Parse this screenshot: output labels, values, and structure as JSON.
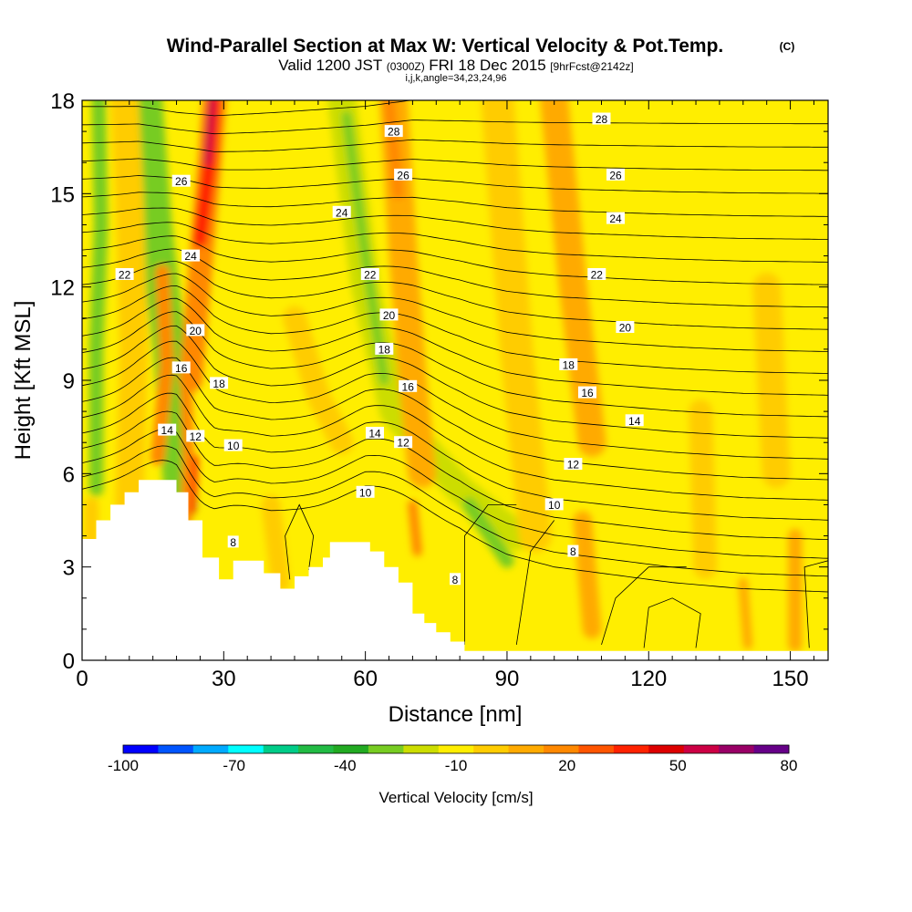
{
  "header": {
    "title": "Wind-Parallel Section at Max W: Vertical Velocity & Pot.Temp.",
    "copyright": "(C)",
    "valid_prefix": "Valid 1200 JST",
    "valid_utc": "(0300Z)",
    "valid_date": "FRI 18 Dec 2015",
    "forecast": "[9hrFcst@2142z]",
    "indices": "i,j,k,angle=34,23,24,96"
  },
  "chart_data": {
    "type": "heatmap",
    "xlabel": "Distance [nm]",
    "ylabel": "Height [Kft MSL]",
    "xlim": [
      0,
      158
    ],
    "ylim": [
      0,
      18
    ],
    "xticks": [
      0,
      30,
      60,
      90,
      120,
      150
    ],
    "yticks": [
      0,
      3,
      6,
      9,
      12,
      15,
      18
    ],
    "xtick_labels": [
      "0",
      "30",
      "60",
      "90",
      "120",
      "150"
    ],
    "ytick_labels": [
      "0",
      "3",
      "6",
      "9",
      "12",
      "15",
      "18"
    ],
    "background_color": "#ffee00",
    "field": "Vertical Velocity [cm/s]",
    "colorbar": {
      "label": "Vertical Velocity [cm/s]",
      "tick_values": [
        -100,
        -70,
        -40,
        -10,
        20,
        50,
        80
      ],
      "tick_labels": [
        "-100",
        "-70",
        "-40",
        "-10",
        "20",
        "50",
        "80"
      ],
      "levels": [
        -100,
        -90,
        -80,
        -70,
        -60,
        -50,
        -40,
        -30,
        -20,
        -10,
        0,
        10,
        20,
        30,
        40,
        50,
        60,
        70,
        80
      ],
      "colors": [
        "#0000ff",
        "#0055ff",
        "#00aaff",
        "#00ffff",
        "#00cc88",
        "#22bb44",
        "#22aa22",
        "#77cc22",
        "#ccdd00",
        "#ffee00",
        "#ffcc00",
        "#ffaa00",
        "#ff8800",
        "#ff5500",
        "#ff2200",
        "#dd0000",
        "#cc0044",
        "#990066",
        "#660088"
      ]
    },
    "velocity_features": [
      {
        "kind": "band",
        "color": "#22aa22",
        "points": [
          [
            20,
            5.6
          ],
          [
            19,
            8
          ],
          [
            17.5,
            11
          ],
          [
            15,
            14.5
          ],
          [
            13,
            18
          ]
        ],
        "width_nm": 3
      },
      {
        "kind": "band",
        "color": "#77cc22",
        "points": [
          [
            21,
            5
          ],
          [
            18.5,
            10
          ],
          [
            15.5,
            14
          ],
          [
            13.5,
            18
          ]
        ],
        "width_nm": 7
      },
      {
        "kind": "band",
        "color": "#ff8800",
        "points": [
          [
            23,
            9
          ],
          [
            25,
            12.5
          ],
          [
            27,
            16
          ],
          [
            28,
            18
          ]
        ],
        "width_nm": 5
      },
      {
        "kind": "band",
        "color": "#ff2200",
        "points": [
          [
            25,
            13.5
          ],
          [
            27,
            16
          ],
          [
            28,
            18
          ]
        ],
        "width_nm": 3
      },
      {
        "kind": "band",
        "color": "#cc0044",
        "points": [
          [
            26.5,
            16
          ],
          [
            27.5,
            18
          ]
        ],
        "width_nm": 1.5
      },
      {
        "kind": "band",
        "color": "#ff8800",
        "points": [
          [
            22,
            4.5
          ],
          [
            22.5,
            6.5
          ],
          [
            22,
            9
          ]
        ],
        "width_nm": 2.5
      },
      {
        "kind": "band",
        "color": "#ff2200",
        "points": [
          [
            23.5,
            4.8
          ],
          [
            24,
            6.5
          ]
        ],
        "width_nm": 1.2
      },
      {
        "kind": "band",
        "color": "#ff8800",
        "points": [
          [
            16,
            6.5
          ],
          [
            18,
            9.5
          ],
          [
            17,
            12.5
          ]
        ],
        "width_nm": 3
      },
      {
        "kind": "band",
        "color": "#77cc22",
        "points": [
          [
            3,
            5.5
          ],
          [
            3,
            10
          ],
          [
            4,
            14
          ],
          [
            3.5,
            18
          ]
        ],
        "width_nm": 3
      },
      {
        "kind": "band",
        "color": "#ffcc00",
        "points": [
          [
            10,
            5
          ],
          [
            11,
            10
          ],
          [
            10,
            15
          ],
          [
            9,
            18
          ]
        ],
        "width_nm": 6
      },
      {
        "kind": "band",
        "color": "#ccdd00",
        "points": [
          [
            55,
            18
          ],
          [
            60,
            12
          ],
          [
            66,
            8
          ],
          [
            80,
            5.5
          ],
          [
            92,
            4
          ]
        ],
        "width_nm": 6
      },
      {
        "kind": "band",
        "color": "#77cc22",
        "points": [
          [
            56,
            17.5
          ],
          [
            60,
            13
          ],
          [
            64,
            9
          ]
        ],
        "width_nm": 2
      },
      {
        "kind": "band",
        "color": "#77cc22",
        "points": [
          [
            82,
            5
          ],
          [
            90,
            3.2
          ]
        ],
        "width_nm": 3
      },
      {
        "kind": "band",
        "color": "#ffaa00",
        "points": [
          [
            66,
            18
          ],
          [
            68,
            13
          ],
          [
            70,
            9
          ],
          [
            72,
            6
          ]
        ],
        "width_nm": 6
      },
      {
        "kind": "band",
        "color": "#ff8800",
        "points": [
          [
            65,
            18
          ],
          [
            67,
            15
          ]
        ],
        "width_nm": 2.5
      },
      {
        "kind": "band",
        "color": "#ff8800",
        "points": [
          [
            70,
            5
          ],
          [
            71,
            3.5
          ]
        ],
        "width_nm": 2
      },
      {
        "kind": "band",
        "color": "#ffaa00",
        "points": [
          [
            100,
            18
          ],
          [
            104,
            12
          ],
          [
            108,
            7
          ]
        ],
        "width_nm": 6
      },
      {
        "kind": "band",
        "color": "#ffcc00",
        "points": [
          [
            88,
            18
          ],
          [
            92,
            10
          ],
          [
            96,
            4
          ]
        ],
        "width_nm": 7
      },
      {
        "kind": "band",
        "color": "#ffaa00",
        "points": [
          [
            106,
            4.5
          ],
          [
            108,
            1
          ]
        ],
        "width_nm": 4
      },
      {
        "kind": "band",
        "color": "#ffcc00",
        "points": [
          [
            131,
            8
          ],
          [
            132,
            3
          ]
        ],
        "width_nm": 5
      },
      {
        "kind": "band",
        "color": "#ffcc00",
        "points": [
          [
            145,
            12
          ],
          [
            147,
            6
          ]
        ],
        "width_nm": 6
      },
      {
        "kind": "band",
        "color": "#ffaa00",
        "points": [
          [
            140,
            2.5
          ],
          [
            141,
            0.5
          ]
        ],
        "width_nm": 2
      },
      {
        "kind": "band",
        "color": "#ffaa00",
        "points": [
          [
            151,
            4
          ],
          [
            151,
            0.5
          ]
        ],
        "width_nm": 3
      },
      {
        "kind": "band",
        "color": "#ffcc00",
        "points": [
          [
            2,
            5
          ],
          [
            2,
            3.5
          ]
        ],
        "width_nm": 3
      },
      {
        "kind": "band",
        "color": "#ffcc00",
        "points": [
          [
            40,
            5
          ],
          [
            42,
            2.5
          ]
        ],
        "width_nm": 4
      },
      {
        "kind": "band",
        "color": "#ffcc00",
        "points": [
          [
            45,
            11
          ],
          [
            50,
            8.5
          ],
          [
            55,
            7
          ]
        ],
        "width_nm": 5
      }
    ],
    "terrain": {
      "color": "#ffffff",
      "outline": [
        [
          0,
          3.9
        ],
        [
          3,
          3.9
        ],
        [
          3,
          4.5
        ],
        [
          6,
          4.5
        ],
        [
          6,
          5.0
        ],
        [
          9,
          5.0
        ],
        [
          9,
          5.4
        ],
        [
          12,
          5.4
        ],
        [
          12,
          5.8
        ],
        [
          20,
          5.8
        ],
        [
          20,
          5.4
        ],
        [
          22.5,
          5.4
        ],
        [
          22.5,
          4.5
        ],
        [
          25.5,
          4.5
        ],
        [
          25.5,
          3.3
        ],
        [
          29,
          3.3
        ],
        [
          29,
          2.6
        ],
        [
          32,
          2.6
        ],
        [
          32,
          3.2
        ],
        [
          38.5,
          3.2
        ],
        [
          38.5,
          2.8
        ],
        [
          42,
          2.8
        ],
        [
          42,
          2.3
        ],
        [
          45,
          2.3
        ],
        [
          45,
          2.7
        ],
        [
          48,
          2.7
        ],
        [
          48,
          3.0
        ],
        [
          51,
          3.0
        ],
        [
          51,
          3.3
        ],
        [
          52.5,
          3.3
        ],
        [
          52.5,
          3.8
        ],
        [
          61,
          3.8
        ],
        [
          61,
          3.5
        ],
        [
          64,
          3.5
        ],
        [
          64,
          3.0
        ],
        [
          67,
          3.0
        ],
        [
          67,
          2.5
        ],
        [
          70,
          2.5
        ],
        [
          70,
          1.5
        ],
        [
          72.5,
          1.5
        ],
        [
          72.5,
          1.2
        ],
        [
          75,
          1.2
        ],
        [
          75,
          0.9
        ],
        [
          78,
          0.9
        ],
        [
          78,
          0.6
        ],
        [
          81,
          0.6
        ],
        [
          81,
          0.3
        ],
        [
          158,
          0.3
        ]
      ]
    },
    "theta_isentropes": {
      "kind": "contours",
      "interval_C": 0.5,
      "base_C": 6,
      "surface_height_kft": {
        "x": [
          0,
          12,
          20,
          28,
          40,
          50,
          60,
          70,
          80,
          90,
          100,
          110,
          125,
          140,
          158
        ],
        "h": [
          5.5,
          5.9,
          6.0,
          5.2,
          4.8,
          4.8,
          4.9,
          4.5,
          4.1,
          3.4,
          3.0,
          2.8,
          2.5,
          2.3,
          2.2
        ]
      },
      "top_height_kft": {
        "x": [
          0,
          12,
          20,
          28,
          40,
          50,
          60,
          70,
          80,
          90,
          100,
          110,
          125,
          140,
          158
        ],
        "h": [
          17.8,
          17.8,
          17.6,
          17.5,
          17.6,
          17.7,
          17.8,
          18.0,
          18.0,
          18.0,
          18.0,
          18.0,
          18.0,
          18.0,
          18.0
        ]
      },
      "wave_perturbation": [
        {
          "x": 20,
          "y": 9,
          "amp_kft": 1.2,
          "width_nm": 9,
          "depth_kft": 4
        },
        {
          "x": 25,
          "y": 6.5,
          "amp_kft": -0.8,
          "width_nm": 6,
          "depth_kft": 3
        },
        {
          "x": 65,
          "y": 7,
          "amp_kft": 1.0,
          "width_nm": 12,
          "depth_kft": 5
        }
      ],
      "labeled_values": [
        "8",
        "10",
        "12",
        "14",
        "16",
        "18",
        "20",
        "22",
        "24",
        "26",
        "28"
      ]
    },
    "contour_labels": [
      {
        "text": "28",
        "x": 110,
        "y": 17.4
      },
      {
        "text": "28",
        "x": 66,
        "y": 17.0
      },
      {
        "text": "26",
        "x": 113,
        "y": 15.6
      },
      {
        "text": "26",
        "x": 68,
        "y": 15.6
      },
      {
        "text": "26",
        "x": 21,
        "y": 15.4
      },
      {
        "text": "24",
        "x": 55,
        "y": 14.4
      },
      {
        "text": "24",
        "x": 113,
        "y": 14.2
      },
      {
        "text": "24",
        "x": 23,
        "y": 13.0
      },
      {
        "text": "22",
        "x": 9,
        "y": 12.4
      },
      {
        "text": "22",
        "x": 61,
        "y": 12.4
      },
      {
        "text": "22",
        "x": 109,
        "y": 12.4
      },
      {
        "text": "20",
        "x": 65,
        "y": 11.1
      },
      {
        "text": "20",
        "x": 115,
        "y": 10.7
      },
      {
        "text": "20",
        "x": 24,
        "y": 10.6
      },
      {
        "text": "18",
        "x": 64,
        "y": 10.0
      },
      {
        "text": "18",
        "x": 103,
        "y": 9.5
      },
      {
        "text": "18",
        "x": 29,
        "y": 8.9
      },
      {
        "text": "16",
        "x": 21,
        "y": 9.4
      },
      {
        "text": "16",
        "x": 69,
        "y": 8.8
      },
      {
        "text": "16",
        "x": 107,
        "y": 8.6
      },
      {
        "text": "14",
        "x": 117,
        "y": 7.7
      },
      {
        "text": "14",
        "x": 18,
        "y": 7.4
      },
      {
        "text": "14",
        "x": 62,
        "y": 7.3
      },
      {
        "text": "12",
        "x": 24,
        "y": 7.2
      },
      {
        "text": "12",
        "x": 68,
        "y": 7.0
      },
      {
        "text": "12",
        "x": 104,
        "y": 6.3
      },
      {
        "text": "10",
        "x": 32,
        "y": 6.9
      },
      {
        "text": "10",
        "x": 60,
        "y": 5.4
      },
      {
        "text": "10",
        "x": 100,
        "y": 5.0
      },
      {
        "text": "8",
        "x": 32,
        "y": 3.8
      },
      {
        "text": "8",
        "x": 104,
        "y": 3.5
      },
      {
        "text": "8",
        "x": 79,
        "y": 2.6
      }
    ],
    "extra_contours": [
      {
        "points": [
          [
            44,
            2.6
          ],
          [
            43,
            4
          ],
          [
            46,
            5
          ],
          [
            49,
            4
          ],
          [
            48,
            2.9
          ]
        ]
      },
      {
        "points": [
          [
            81,
            0.5
          ],
          [
            81,
            4
          ],
          [
            86,
            5
          ],
          [
            92,
            5
          ]
        ]
      },
      {
        "points": [
          [
            119,
            0.4
          ],
          [
            120,
            1.7
          ],
          [
            125,
            2.0
          ],
          [
            131,
            1.5
          ],
          [
            130,
            0.4
          ]
        ]
      },
      {
        "points": [
          [
            154,
            0.4
          ],
          [
            153,
            3.0
          ],
          [
            158,
            3.2
          ]
        ]
      },
      {
        "points": [
          [
            110,
            0.5
          ],
          [
            113,
            2.0
          ],
          [
            120,
            3.0
          ],
          [
            128,
            3.0
          ]
        ]
      },
      {
        "points": [
          [
            92,
            0.5
          ],
          [
            95,
            3.5
          ],
          [
            100,
            4.5
          ]
        ]
      }
    ]
  }
}
